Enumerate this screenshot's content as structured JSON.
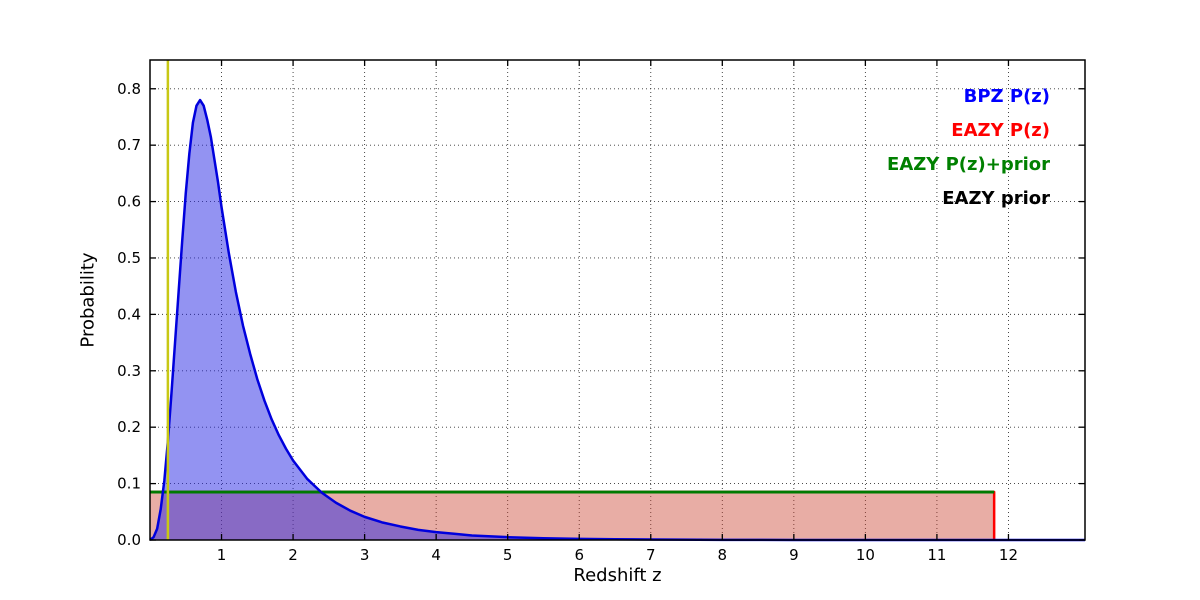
{
  "chart_data": {
    "type": "line",
    "title": "",
    "xlabel": "Redshift z",
    "ylabel": "Probability",
    "xlim": [
      0,
      13.07
    ],
    "ylim": [
      0,
      0.851
    ],
    "xticks": [
      1,
      2,
      3,
      4,
      5,
      6,
      7,
      8,
      9,
      10,
      11,
      12
    ],
    "yticks": [
      "0.0",
      "0.1",
      "0.2",
      "0.3",
      "0.4",
      "0.5",
      "0.6",
      "0.7",
      "0.8"
    ],
    "ytick_values": [
      0.0,
      0.1,
      0.2,
      0.3,
      0.4,
      0.5,
      0.6,
      0.7,
      0.8
    ],
    "grid": true,
    "grid_style": "dotted",
    "legend_position": "top-right",
    "legend": [
      {
        "label": "BPZ P(z)",
        "color": "#0000ff"
      },
      {
        "label": "EAZY P(z)",
        "color": "#ff0000"
      },
      {
        "label": "EAZY P(z)+prior",
        "color": "#008000"
      },
      {
        "label": "EAZY prior",
        "color": "#000000"
      }
    ],
    "vline": {
      "x": 0.25,
      "color": "#c8c814",
      "width": 2.5,
      "name": "reference-redshift-line"
    },
    "series": [
      {
        "name": "EAZY prior",
        "color": "#000000",
        "lw": 2.5,
        "fill": null,
        "x": [
          0,
          11.8
        ],
        "y": [
          0.085,
          0.085
        ]
      },
      {
        "name": "EAZY P(z)",
        "color": "#ff0000",
        "lw": 2.5,
        "fill": "rgba(200,60,40,0.42)",
        "x": [
          0,
          11.8,
          11.8
        ],
        "y": [
          0.085,
          0.085,
          0.0
        ]
      },
      {
        "name": "EAZY P(z)+prior",
        "color": "#007a00",
        "lw": 2.8,
        "fill": null,
        "x": [
          0,
          11.8
        ],
        "y": [
          0.085,
          0.085
        ]
      },
      {
        "name": "BPZ P(z)",
        "color": "#0000dd",
        "lw": 2.5,
        "fill": "rgba(40,40,230,0.5)",
        "x": [
          0,
          0.05,
          0.1,
          0.15,
          0.2,
          0.25,
          0.3,
          0.35,
          0.4,
          0.45,
          0.5,
          0.55,
          0.6,
          0.65,
          0.7,
          0.75,
          0.8,
          0.85,
          0.9,
          0.95,
          1.0,
          1.1,
          1.2,
          1.3,
          1.4,
          1.5,
          1.6,
          1.7,
          1.8,
          1.9,
          2.0,
          2.2,
          2.4,
          2.6,
          2.8,
          3.0,
          3.25,
          3.5,
          3.75,
          4.0,
          4.25,
          4.5,
          5.0,
          5.5,
          6.0,
          6.5,
          7.0,
          8.0,
          9.0,
          10.0,
          13.07
        ],
        "y": [
          0,
          0.005,
          0.02,
          0.055,
          0.105,
          0.175,
          0.26,
          0.35,
          0.44,
          0.53,
          0.615,
          0.685,
          0.74,
          0.77,
          0.78,
          0.77,
          0.745,
          0.715,
          0.675,
          0.635,
          0.59,
          0.51,
          0.44,
          0.38,
          0.33,
          0.285,
          0.247,
          0.214,
          0.186,
          0.162,
          0.141,
          0.108,
          0.084,
          0.066,
          0.052,
          0.041,
          0.031,
          0.024,
          0.018,
          0.014,
          0.011,
          0.008,
          0.005,
          0.003,
          0.002,
          0.0013,
          0.0008,
          0.0003,
          0.0001,
          0,
          0
        ]
      }
    ]
  }
}
